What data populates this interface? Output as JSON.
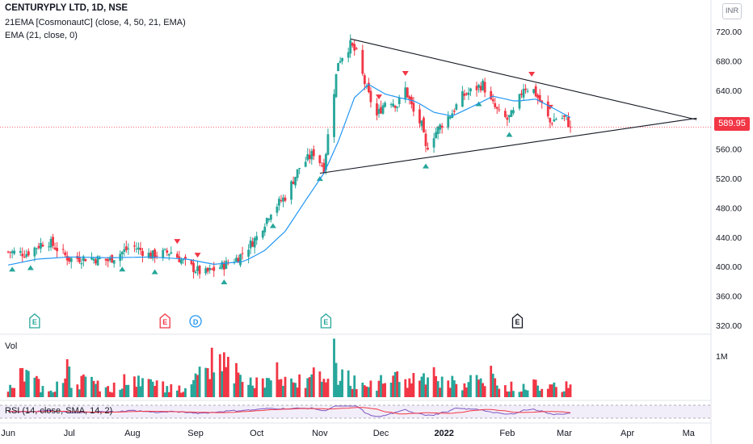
{
  "header": {
    "title": "CENTURYPLY LTD, 1D, NSE",
    "indicator_1": "21EMA [CosmonautC] (close, 4, 50, 21, EMA)",
    "indicator_2": "EMA (21, close, 0)",
    "currency": "INR"
  },
  "volume_pane": {
    "label": "Vol",
    "scale_label": "1M"
  },
  "rsi_pane": {
    "label": "RSI (14, close, SMA, 14, 2)"
  },
  "last_price": "589.95",
  "colors": {
    "up": "#26a69a",
    "down": "#f23645",
    "ema": "#2196f3",
    "rsi": "#7e57c2",
    "rsi_ma": "#f23645",
    "trendline": "#131722"
  },
  "chart_data": {
    "type": "candlestick",
    "title": "CENTURYPLY LTD, 1D, NSE",
    "y_axis": {
      "min": 320,
      "max": 720,
      "ticks": [
        "720.00",
        "680.00",
        "640.00",
        "600.00",
        "560.00",
        "520.00",
        "480.00",
        "440.00",
        "400.00",
        "360.00",
        "320.00"
      ]
    },
    "x_axis": {
      "ticks": [
        "Jun",
        "Jul",
        "Aug",
        "Sep",
        "Oct",
        "Nov",
        "Dec",
        "2022",
        "Feb",
        "Mar",
        "Apr",
        "Ma"
      ]
    },
    "price_path": [
      [
        "2021-06-01",
        420
      ],
      [
        "2021-06-10",
        418
      ],
      [
        "2021-06-20",
        436
      ],
      [
        "2021-07-01",
        410
      ],
      [
        "2021-07-10",
        412
      ],
      [
        "2021-07-20",
        408
      ],
      [
        "2021-08-01",
        428
      ],
      [
        "2021-08-10",
        415
      ],
      [
        "2021-08-20",
        420
      ],
      [
        "2021-08-28",
        402
      ],
      [
        "2021-09-05",
        390
      ],
      [
        "2021-09-12",
        398
      ],
      [
        "2021-09-22",
        412
      ],
      [
        "2021-10-01",
        440
      ],
      [
        "2021-10-08",
        476
      ],
      [
        "2021-10-15",
        495
      ],
      [
        "2021-10-22",
        535
      ],
      [
        "2021-10-29",
        555
      ],
      [
        "2021-11-03",
        535
      ],
      [
        "2021-11-06",
        600
      ],
      [
        "2021-11-10",
        680
      ],
      [
        "2021-11-16",
        702
      ],
      [
        "2021-11-19",
        690
      ],
      [
        "2021-11-24",
        640
      ],
      [
        "2021-11-29",
        605
      ],
      [
        "2021-12-04",
        630
      ],
      [
        "2021-12-09",
        620
      ],
      [
        "2021-12-13",
        642
      ],
      [
        "2021-12-17",
        610
      ],
      [
        "2021-12-21",
        592
      ],
      [
        "2021-12-23",
        560
      ],
      [
        "2021-12-27",
        580
      ],
      [
        "2022-01-01",
        598
      ],
      [
        "2022-01-05",
        610
      ],
      [
        "2022-01-10",
        632
      ],
      [
        "2022-01-15",
        640
      ],
      [
        "2022-01-20",
        648
      ],
      [
        "2022-01-24",
        624
      ],
      [
        "2022-01-28",
        608
      ],
      [
        "2022-02-01",
        600
      ],
      [
        "2022-02-05",
        612
      ],
      [
        "2022-02-09",
        645
      ],
      [
        "2022-02-14",
        640
      ],
      [
        "2022-02-18",
        620
      ],
      [
        "2022-02-22",
        596
      ],
      [
        "2022-02-26",
        604
      ],
      [
        "2022-03-02",
        601
      ],
      [
        "2022-03-04",
        589.95
      ]
    ],
    "ema21_path": [
      [
        "2021-06-01",
        402
      ],
      [
        "2021-06-15",
        410
      ],
      [
        "2021-07-01",
        413
      ],
      [
        "2021-07-20",
        412
      ],
      [
        "2021-08-10",
        413
      ],
      [
        "2021-08-28",
        410
      ],
      [
        "2021-09-10",
        403
      ],
      [
        "2021-09-25",
        407
      ],
      [
        "2021-10-05",
        422
      ],
      [
        "2021-10-15",
        448
      ],
      [
        "2021-10-25",
        490
      ],
      [
        "2021-11-03",
        527
      ],
      [
        "2021-11-10",
        570
      ],
      [
        "2021-11-18",
        630
      ],
      [
        "2021-11-25",
        648
      ],
      [
        "2021-12-03",
        635
      ],
      [
        "2021-12-10",
        630
      ],
      [
        "2021-12-18",
        625
      ],
      [
        "2021-12-27",
        610
      ],
      [
        "2022-01-05",
        605
      ],
      [
        "2022-01-15",
        618
      ],
      [
        "2022-01-25",
        632
      ],
      [
        "2022-02-05",
        625
      ],
      [
        "2022-02-15",
        628
      ],
      [
        "2022-02-24",
        615
      ],
      [
        "2022-03-04",
        603
      ]
    ],
    "trendlines": [
      {
        "from": [
          "2021-11-16",
          710
        ],
        "to": [
          "2022-05-05",
          600
        ]
      },
      {
        "from": [
          "2021-11-01",
          527
        ],
        "to": [
          "2022-05-05",
          602
        ]
      }
    ],
    "volume_path": [
      [
        "2021-06-01",
        0.25
      ],
      [
        "2021-06-08",
        0.95
      ],
      [
        "2021-06-20",
        0.3
      ],
      [
        "2021-07-01",
        0.85
      ],
      [
        "2021-07-20",
        0.35
      ],
      [
        "2021-08-05",
        0.65
      ],
      [
        "2021-08-28",
        0.25
      ],
      [
        "2021-09-10",
        1.55
      ],
      [
        "2021-09-13",
        1.8
      ],
      [
        "2021-09-25",
        0.5
      ],
      [
        "2021-10-05",
        0.7
      ],
      [
        "2021-10-20",
        0.55
      ],
      [
        "2021-11-01",
        1.3
      ],
      [
        "2021-11-10",
        1.1
      ],
      [
        "2021-11-20",
        0.5
      ],
      [
        "2021-12-10",
        0.7
      ],
      [
        "2021-12-23",
        0.9
      ],
      [
        "2022-01-10",
        0.5
      ],
      [
        "2022-01-20",
        0.8
      ],
      [
        "2022-02-01",
        0.4
      ],
      [
        "2022-02-20",
        0.6
      ],
      [
        "2022-03-04",
        0.4
      ]
    ],
    "volume_ylim": [
      0,
      2.0
    ],
    "volume_unit": "M",
    "rsi_ylim": [
      0,
      100
    ]
  }
}
